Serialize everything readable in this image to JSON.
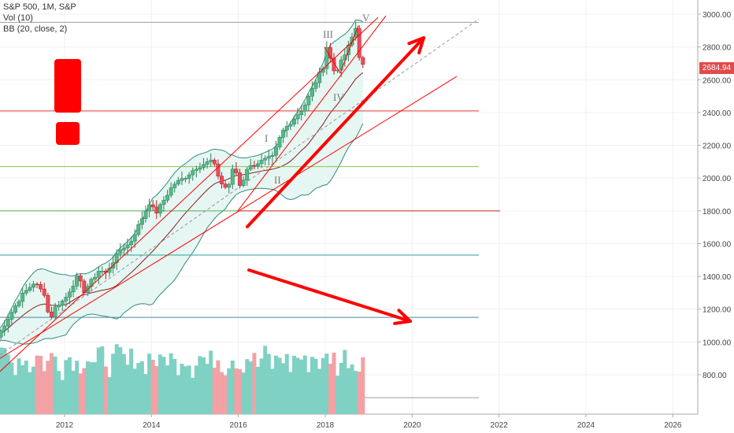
{
  "legend": {
    "symbol": "S&P 500, 1M, S&P",
    "volume": "Vol (10)",
    "bollinger": "BB (20, close, 2)"
  },
  "last_price": "2684.94",
  "colors": {
    "up": "#53b987",
    "down": "#eb4d5c",
    "vol_up": "#7fd1c3",
    "vol_down": "#f2a1a5",
    "trend": "#ff0000",
    "bb_fill": "#e6f6f3",
    "bb_line": "#2f8c7a",
    "ma": "#8b1d1d",
    "level_green": "#4caf50",
    "level_olive": "#8bc34a",
    "level_red": "#e53935",
    "level_teal": "#26a69a",
    "level_blue": "#4a8aa0",
    "level_gray": "#9e9e9e"
  },
  "annotations": {
    "wave_1": "I",
    "wave_2": "II",
    "wave_3": "III",
    "wave_4": "IV",
    "wave_5": "V"
  },
  "chart_data": {
    "type": "candlestick",
    "title": "S&P 500, 1M, S&P",
    "ylim": [
      650,
      3080
    ],
    "xlim": [
      2010.4,
      2026.7
    ],
    "y_ticks": [
      "800.00",
      "1000.00",
      "1200.00",
      "1400.00",
      "1600.00",
      "1800.00",
      "2000.00",
      "2200.00",
      "2400.00",
      "2600.00",
      "2800.00",
      "3000.00"
    ],
    "x_ticks": [
      "2012",
      "2014",
      "2016",
      "2018",
      "2020",
      "2022",
      "2024",
      "2026"
    ],
    "grid": true,
    "horizontal_levels": [
      2950,
      2410,
      2070,
      1800,
      1530,
      1150,
      660
    ],
    "ohlc_sampled": [
      {
        "t": "2010-06",
        "o": 1070,
        "h": 1100,
        "l": 1010,
        "c": 1030
      },
      {
        "t": "2010-12",
        "o": 1180,
        "h": 1260,
        "l": 1175,
        "c": 1257
      },
      {
        "t": "2011-04",
        "o": 1330,
        "h": 1370,
        "l": 1295,
        "c": 1363
      },
      {
        "t": "2011-08",
        "o": 1290,
        "h": 1305,
        "l": 1075,
        "c": 1220
      },
      {
        "t": "2011-12",
        "o": 1245,
        "h": 1270,
        "l": 1200,
        "c": 1258
      },
      {
        "t": "2012-04",
        "o": 1410,
        "h": 1425,
        "l": 1360,
        "c": 1398
      },
      {
        "t": "2012-12",
        "o": 1410,
        "h": 1450,
        "l": 1380,
        "c": 1426
      },
      {
        "t": "2013-06",
        "o": 1630,
        "h": 1690,
        "l": 1560,
        "c": 1606
      },
      {
        "t": "2013-12",
        "o": 1800,
        "h": 1850,
        "l": 1780,
        "c": 1848
      },
      {
        "t": "2014-06",
        "o": 1925,
        "h": 1970,
        "l": 1915,
        "c": 1960
      },
      {
        "t": "2014-12",
        "o": 2070,
        "h": 2090,
        "l": 1970,
        "c": 2059
      },
      {
        "t": "2015-06",
        "o": 2110,
        "h": 2130,
        "l": 2060,
        "c": 2063
      },
      {
        "t": "2015-08",
        "o": 2100,
        "h": 2110,
        "l": 1870,
        "c": 1972
      },
      {
        "t": "2016-01",
        "o": 2040,
        "h": 2040,
        "l": 1810,
        "c": 1940
      },
      {
        "t": "2016-06",
        "o": 2095,
        "h": 2120,
        "l": 1990,
        "c": 2099
      },
      {
        "t": "2016-12",
        "o": 2200,
        "h": 2280,
        "l": 2190,
        "c": 2239
      },
      {
        "t": "2017-06",
        "o": 2410,
        "h": 2455,
        "l": 2400,
        "c": 2423
      },
      {
        "t": "2017-12",
        "o": 2650,
        "h": 2695,
        "l": 2605,
        "c": 2674
      },
      {
        "t": "2018-01",
        "o": 2680,
        "h": 2875,
        "l": 2680,
        "c": 2824
      },
      {
        "t": "2018-02",
        "o": 2820,
        "h": 2835,
        "l": 2530,
        "c": 2714
      },
      {
        "t": "2018-03",
        "o": 2715,
        "h": 2800,
        "l": 2585,
        "c": 2641
      },
      {
        "t": "2018-06",
        "o": 2720,
        "h": 2790,
        "l": 2700,
        "c": 2718
      },
      {
        "t": "2018-09",
        "o": 2900,
        "h": 2940,
        "l": 2865,
        "c": 2914
      },
      {
        "t": "2018-10",
        "o": 2926,
        "h": 2940,
        "l": 2603,
        "c": 2711
      },
      {
        "t": "2018-11",
        "o": 2720,
        "h": 2815,
        "l": 2630,
        "c": 2685
      }
    ],
    "series": [
      {
        "name": "Vol (10)",
        "values": "monthly volume bars"
      },
      {
        "name": "BB (20, close, 2)",
        "values": "bollinger band"
      }
    ]
  }
}
